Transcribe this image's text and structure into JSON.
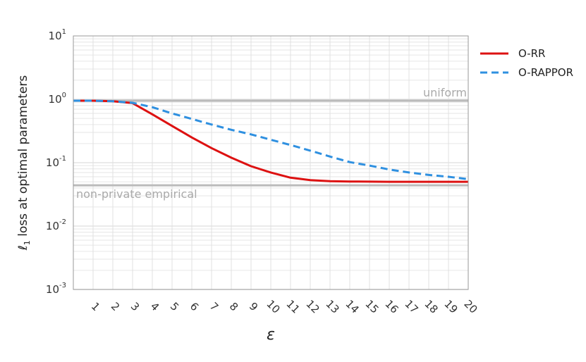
{
  "chart_data": {
    "type": "line",
    "xlabel": "ε",
    "ylabel": "loss at optimal parameters",
    "ylabel_prefix": "ℓ",
    "ylabel_prefix_sub": "1",
    "yscale": "log",
    "ylim": [
      0.001,
      10
    ],
    "xlim": [
      0,
      20
    ],
    "grid": true,
    "legend_position": "outside-top-right",
    "x_ticks": [
      1,
      2,
      3,
      4,
      5,
      6,
      7,
      8,
      9,
      10,
      11,
      12,
      13,
      14,
      15,
      16,
      17,
      18,
      19,
      20
    ],
    "x_tick_labels": [
      "1",
      "2",
      "3",
      "4",
      "5",
      "6",
      "7",
      "8",
      "9",
      "10",
      "11",
      "12",
      "13",
      "14",
      "15",
      "16",
      "17",
      "18",
      "19",
      "20"
    ],
    "y_ticks": [
      {
        "value": 0.001,
        "base": "10",
        "exp": "-3"
      },
      {
        "value": 0.01,
        "base": "10",
        "exp": "-2"
      },
      {
        "value": 0.1,
        "base": "10",
        "exp": "-1"
      },
      {
        "value": 1,
        "base": "10",
        "exp": "0"
      },
      {
        "value": 10,
        "base": "10",
        "exp": "1"
      }
    ],
    "x": [
      0,
      1,
      2,
      3,
      4,
      5,
      6,
      7,
      8,
      9,
      10,
      11,
      12,
      13,
      14,
      15,
      16,
      17,
      18,
      19,
      20
    ],
    "series": [
      {
        "name": "O-RR",
        "color": "#dd1111",
        "dash": "solid",
        "values": [
          0.95,
          0.95,
          0.93,
          0.87,
          0.58,
          0.38,
          0.25,
          0.17,
          0.12,
          0.088,
          0.07,
          0.058,
          0.053,
          0.051,
          0.0505,
          0.0502,
          0.05,
          0.05,
          0.05,
          0.05,
          0.05
        ]
      },
      {
        "name": "O-RAPPOR",
        "color": "#2f90e0",
        "dash": "dashed",
        "values": [
          0.95,
          0.95,
          0.93,
          0.88,
          0.75,
          0.6,
          0.49,
          0.4,
          0.33,
          0.28,
          0.23,
          0.19,
          0.155,
          0.125,
          0.102,
          0.09,
          0.078,
          0.07,
          0.064,
          0.06,
          0.055
        ]
      }
    ],
    "reference_lines": [
      {
        "label": "uniform",
        "value": 0.95,
        "color": "#bbbbbb"
      },
      {
        "label": "non-private empirical",
        "value": 0.044,
        "color": "#bbbbbb"
      }
    ]
  }
}
